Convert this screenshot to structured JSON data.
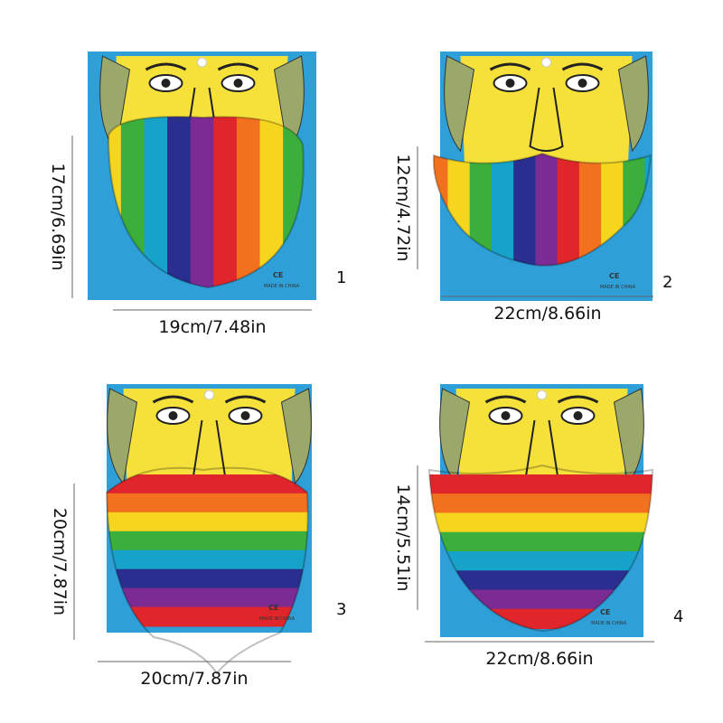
{
  "items": [
    {
      "number": "1",
      "height_label": "17cm/6.69in",
      "width_label": "19cm/7.48in"
    },
    {
      "number": "2",
      "height_label": "12cm/4.72in",
      "width_label": "22cm/8.66in"
    },
    {
      "number": "3",
      "height_label": "20cm/7.87in",
      "width_label": "20cm/7.87in"
    },
    {
      "number": "4",
      "height_label": "14cm/5.51in",
      "width_label": "22cm/8.66in"
    }
  ],
  "package_text": "MADE IN CHINA",
  "mark_text": "CE"
}
